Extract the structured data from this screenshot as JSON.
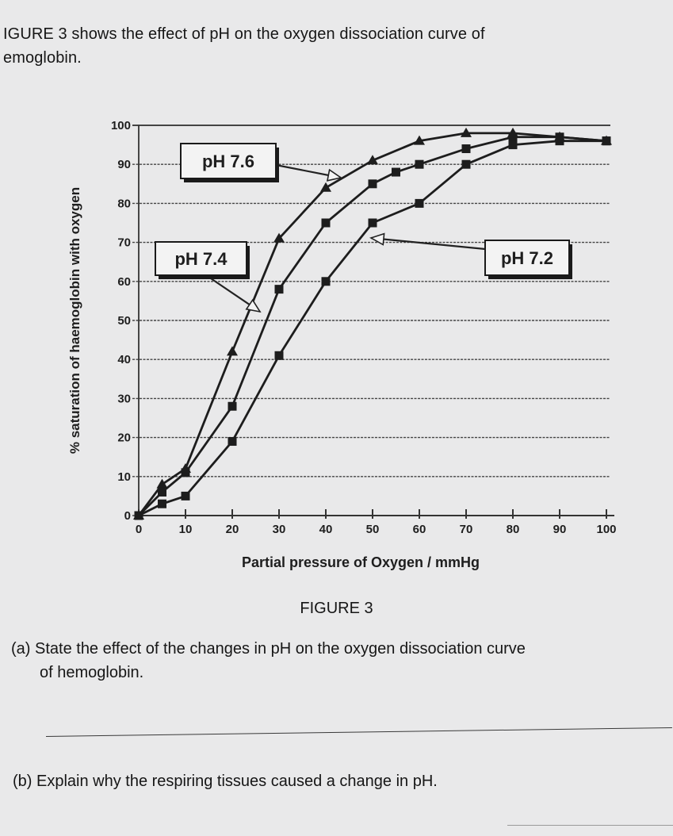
{
  "intro": {
    "line1": "IGURE 3 shows the effect of pH on the oxygen dissociation curve of",
    "line2": "emoglobin."
  },
  "chart_data": {
    "type": "line",
    "title": "",
    "xlabel": "Partial pressure of Oxygen / mmHg",
    "ylabel": "% saturation of haemoglobin with oxygen",
    "xlim": [
      0,
      100
    ],
    "ylim": [
      0,
      100
    ],
    "xticks": [
      "0",
      "10",
      "20",
      "30",
      "40",
      "50",
      "60",
      "70",
      "80",
      "90",
      "100"
    ],
    "yticks": [
      "0",
      "10",
      "20",
      "30",
      "40",
      "50",
      "60",
      "70",
      "80",
      "90",
      "100"
    ],
    "grid": "horizontal",
    "series": [
      {
        "name": "pH 7.6",
        "marker": "triangle",
        "x": [
          0,
          5,
          10,
          20,
          30,
          40,
          50,
          60,
          70,
          80,
          90,
          100
        ],
        "y": [
          0,
          8,
          12,
          42,
          71,
          84,
          91,
          96,
          98,
          98,
          97,
          96
        ]
      },
      {
        "name": "pH 7.4",
        "marker": "square",
        "x": [
          0,
          5,
          10,
          20,
          30,
          40,
          50,
          55,
          60,
          70,
          80,
          90,
          100
        ],
        "y": [
          0,
          6,
          11,
          28,
          58,
          75,
          85,
          88,
          90,
          94,
          97,
          97,
          96
        ]
      },
      {
        "name": "pH 7.2",
        "marker": "square",
        "x": [
          0,
          5,
          10,
          20,
          30,
          40,
          50,
          60,
          70,
          80,
          90,
          100
        ],
        "y": [
          0,
          3,
          5,
          19,
          41,
          60,
          75,
          80,
          90,
          95,
          96,
          96
        ]
      }
    ],
    "annotations": [
      "pH 7.6",
      "pH 7.4",
      "pH 7.2"
    ]
  },
  "figure_caption": "FIGURE 3",
  "questions": {
    "a_line1": "(a) State the effect of the changes in pH on the oxygen dissociation curve",
    "a_line2": "of hemoglobin.",
    "b_line1": "(b) Explain why the respiring tissues caused a change in pH."
  }
}
